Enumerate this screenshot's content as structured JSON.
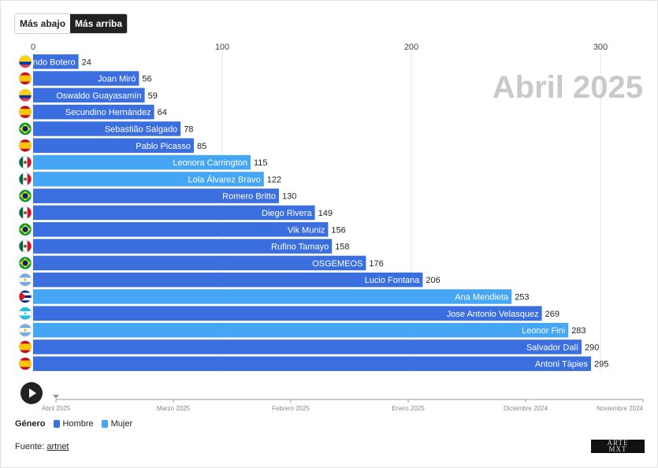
{
  "controls": {
    "sort_low": "Más abajo",
    "sort_high": "Más arriba",
    "active": "Más arriba"
  },
  "period_label": "Abril 2025",
  "timeline": {
    "labels": [
      "Abril 2025",
      "Marzo 2025",
      "Febrero 2025",
      "Enero 2025",
      "Diciembre 2024",
      "Noviembre 2024"
    ],
    "current": "Abril 2025"
  },
  "legend": {
    "title": "Género",
    "items": [
      {
        "label": "Hombre",
        "color": "#3b6fe0"
      },
      {
        "label": "Mujer",
        "color": "#44a6f5"
      }
    ]
  },
  "source": {
    "prefix": "Fuente: ",
    "link_text": "artnet"
  },
  "logo_text": "ARTE MXT",
  "chart_data": {
    "type": "bar",
    "orientation": "horizontal",
    "xlim": [
      0,
      320
    ],
    "ticks": [
      0,
      100,
      200,
      300
    ],
    "grid": true,
    "categories": [
      "Fernando Botero",
      "Joan Miró",
      "Oswaldo Guayasamín",
      "Secundino Hernández",
      "Sebastião Salgado",
      "Pablo Picasso",
      "Leonora Carrington",
      "Lola Álvarez Bravo",
      "Romero Britto",
      "Diego Rivera",
      "Vik Muniz",
      "Rufino Tamayo",
      "OSGEMEOS",
      "Lucio Fontana",
      "Ana Mendieta",
      "Jose Antonio Velasquez",
      "Leonor Fini",
      "Salvador Dalí",
      "Antoni Tàpies"
    ],
    "values": [
      24,
      56,
      59,
      64,
      78,
      85,
      115,
      122,
      130,
      149,
      156,
      158,
      176,
      206,
      253,
      269,
      283,
      290,
      295
    ],
    "gender": [
      "Hombre",
      "Hombre",
      "Hombre",
      "Hombre",
      "Hombre",
      "Hombre",
      "Mujer",
      "Mujer",
      "Hombre",
      "Hombre",
      "Hombre",
      "Hombre",
      "Hombre",
      "Hombre",
      "Mujer",
      "Hombre",
      "Mujer",
      "Hombre",
      "Hombre"
    ],
    "flags": [
      "ecuador",
      "spain",
      "ecuador",
      "spain",
      "brazil",
      "spain",
      "mexico",
      "mexico",
      "brazil",
      "mexico",
      "brazil",
      "mexico",
      "brazil",
      "argentina",
      "cuba",
      "honduras",
      "argentina",
      "spain",
      "spain"
    ]
  }
}
